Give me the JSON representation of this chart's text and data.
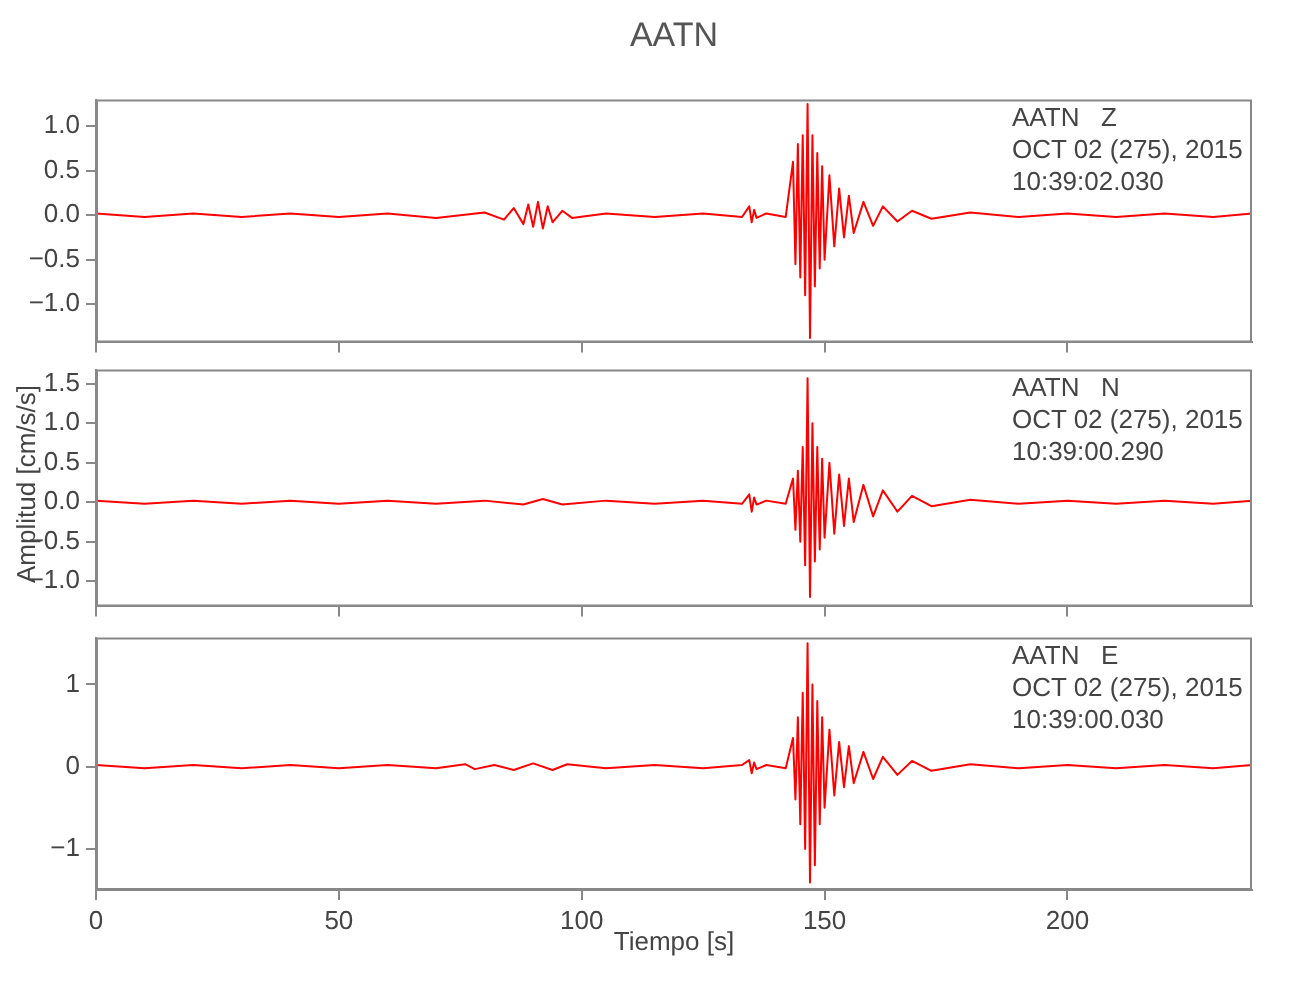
{
  "chart_data": [
    {
      "type": "line",
      "title": "AATN",
      "annotations": [
        "AATN   Z",
        "OCT 02 (275), 2015",
        "10:39:02.030"
      ],
      "xlim": [
        0,
        238
      ],
      "xticks": [
        0,
        50,
        100,
        150,
        200
      ],
      "ylim": [
        -1.43,
        1.3
      ],
      "yticks": [
        {
          "value": -1,
          "label": "−1.0"
        },
        {
          "value": -0.5,
          "label": "−0.5"
        },
        {
          "value": 0,
          "label": "0.0"
        },
        {
          "value": 0.5,
          "label": "0.5"
        },
        {
          "value": 1,
          "label": "1.0"
        }
      ],
      "tick_labels": "y",
      "x": [
        0,
        10,
        20,
        30,
        40,
        50,
        60,
        70,
        80,
        84,
        86,
        88,
        89,
        90,
        91,
        92,
        93,
        94,
        96,
        98,
        105,
        115,
        125,
        133,
        134.5,
        135,
        135.5,
        136,
        138,
        142,
        143.5,
        144,
        144.5,
        145,
        145.5,
        146,
        146.5,
        147,
        147.5,
        148,
        148.5,
        149,
        149.5,
        150,
        151,
        152,
        153,
        154,
        155,
        156,
        158,
        160,
        162,
        165,
        168,
        172,
        180,
        190,
        200,
        210,
        220,
        230,
        238
      ],
      "series": [
        {
          "color": "#ff0000",
          "values": [
            0.02,
            -0.02,
            0.02,
            -0.02,
            0.02,
            -0.02,
            0.02,
            -0.03,
            0.03,
            -0.05,
            0.08,
            -0.1,
            0.12,
            -0.13,
            0.15,
            -0.15,
            0.1,
            -0.08,
            0.05,
            -0.03,
            0.02,
            -0.02,
            0.02,
            -0.02,
            0.1,
            -0.08,
            0.06,
            -0.03,
            0.02,
            -0.02,
            0.6,
            -0.55,
            0.8,
            -0.7,
            0.9,
            -0.9,
            1.25,
            -1.38,
            0.9,
            -0.8,
            0.7,
            -0.6,
            0.55,
            -0.5,
            0.45,
            -0.35,
            0.3,
            -0.25,
            0.22,
            -0.2,
            0.15,
            -0.12,
            0.1,
            -0.07,
            0.05,
            -0.04,
            0.03,
            -0.02,
            0.02,
            -0.02,
            0.02,
            -0.02,
            0.02
          ]
        }
      ]
    },
    {
      "type": "line",
      "ylabel": "Amplitud [cm/s/s]",
      "annotations": [
        "AATN   N",
        "OCT 02 (275), 2015",
        "10:39:00.290"
      ],
      "xlim": [
        0,
        238
      ],
      "xticks": [
        0,
        50,
        100,
        150,
        200
      ],
      "ylim": [
        -1.32,
        1.68
      ],
      "yticks": [
        {
          "value": -1,
          "label": "−1.0"
        },
        {
          "value": -0.5,
          "label": "−0.5"
        },
        {
          "value": 0,
          "label": "0.0"
        },
        {
          "value": 0.5,
          "label": "0.5"
        },
        {
          "value": 1,
          "label": "1.0"
        },
        {
          "value": 1.5,
          "label": "1.5"
        }
      ],
      "tick_labels": "y",
      "x": [
        0,
        10,
        20,
        30,
        40,
        50,
        60,
        70,
        80,
        88,
        92,
        96,
        105,
        115,
        125,
        133,
        134.5,
        135,
        135.5,
        136,
        138,
        142,
        143.5,
        144,
        144.5,
        145,
        145.5,
        146,
        146.5,
        147,
        147.5,
        148,
        148.5,
        149,
        149.5,
        150,
        151,
        152,
        153,
        154,
        155,
        156,
        158,
        160,
        162,
        165,
        168,
        172,
        180,
        190,
        200,
        210,
        220,
        230,
        238
      ],
      "series": [
        {
          "color": "#ff0000",
          "values": [
            0.02,
            -0.02,
            0.02,
            -0.02,
            0.02,
            -0.02,
            0.02,
            -0.02,
            0.02,
            -0.03,
            0.04,
            -0.03,
            0.02,
            -0.02,
            0.02,
            -0.02,
            0.1,
            -0.12,
            0.06,
            -0.03,
            0.02,
            -0.02,
            0.3,
            -0.35,
            0.4,
            -0.5,
            0.7,
            -0.8,
            1.57,
            -1.2,
            1.0,
            -0.75,
            0.7,
            -0.6,
            0.55,
            -0.45,
            0.5,
            -0.4,
            0.35,
            -0.3,
            0.3,
            -0.25,
            0.22,
            -0.18,
            0.15,
            -0.12,
            0.08,
            -0.05,
            0.03,
            -0.02,
            0.02,
            -0.02,
            0.02,
            -0.02,
            0.02
          ]
        }
      ]
    },
    {
      "type": "line",
      "xlabel": "Tiempo [s]",
      "annotations": [
        "AATN   E",
        "OCT 02 (275), 2015",
        "10:39:00.030"
      ],
      "xlim": [
        0,
        238
      ],
      "xticks": [
        0,
        50,
        100,
        150,
        200
      ],
      "ylim": [
        -1.5,
        1.57
      ],
      "yticks": [
        {
          "value": -1,
          "label": "−1"
        },
        0,
        1
      ],
      "x": [
        0,
        10,
        20,
        30,
        40,
        50,
        60,
        70,
        76,
        78,
        82,
        86,
        90,
        94,
        97,
        105,
        115,
        125,
        133,
        134.5,
        135,
        135.5,
        136,
        138,
        142,
        143.5,
        144,
        144.5,
        145,
        145.5,
        146,
        146.5,
        147,
        147.5,
        148,
        148.5,
        149,
        149.5,
        150,
        151,
        152,
        153,
        154,
        155,
        156,
        158,
        160,
        162,
        165,
        168,
        172,
        180,
        190,
        200,
        210,
        220,
        230,
        238
      ],
      "series": [
        {
          "color": "#ff0000",
          "values": [
            0.02,
            -0.02,
            0.02,
            -0.02,
            0.02,
            -0.02,
            0.02,
            -0.02,
            0.03,
            -0.03,
            0.02,
            -0.04,
            0.04,
            -0.04,
            0.03,
            -0.02,
            0.02,
            -0.02,
            0.02,
            0.08,
            -0.08,
            0.05,
            -0.03,
            0.02,
            -0.02,
            0.35,
            -0.4,
            0.6,
            -0.7,
            0.9,
            -1.0,
            1.5,
            -1.41,
            1.0,
            -1.2,
            0.8,
            -0.7,
            0.6,
            -0.5,
            0.45,
            -0.35,
            0.3,
            -0.25,
            0.25,
            -0.2,
            0.18,
            -0.15,
            0.12,
            -0.1,
            0.07,
            -0.05,
            0.03,
            -0.02,
            0.02,
            -0.02,
            0.02,
            -0.02,
            0.02
          ]
        }
      ]
    }
  ]
}
